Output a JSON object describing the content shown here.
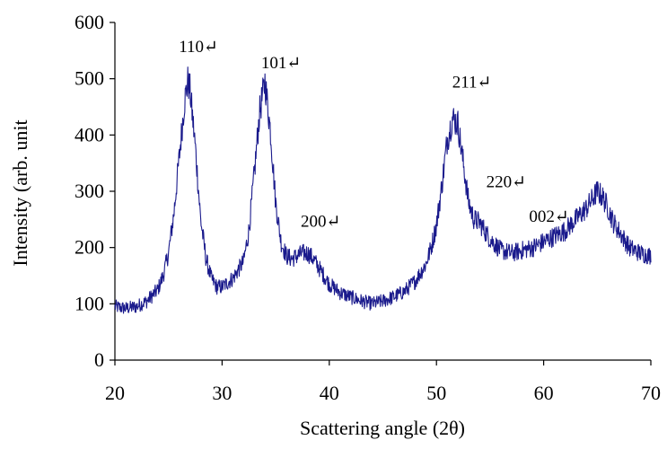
{
  "chart_data": {
    "type": "line",
    "title": "",
    "xlabel": "Scattering angle (2θ)",
    "ylabel": "Intensity (arb. unit",
    "xlim": [
      20,
      70
    ],
    "ylim": [
      0,
      600
    ],
    "xticks": [
      20,
      30,
      40,
      50,
      60,
      70
    ],
    "yticks": [
      0,
      100,
      200,
      300,
      400,
      500,
      600
    ],
    "grid": false,
    "legend": "none",
    "series_color": "#1a1a8c",
    "series": [
      {
        "x": [
          20,
          21,
          22,
          23,
          24,
          24.5,
          25,
          25.5,
          26,
          26.5,
          26.8,
          27,
          27.5,
          28,
          28.5,
          29,
          29.5,
          30,
          31,
          32,
          32.5,
          33,
          33.5,
          34,
          34.5,
          35,
          35.5,
          36,
          36.5,
          37,
          37.5,
          38,
          38.5,
          39,
          39.5,
          40,
          41,
          42,
          43,
          44,
          45,
          46,
          47,
          48,
          49,
          49.5,
          50,
          50.5,
          51,
          51.5,
          52,
          52.5,
          53,
          53.5,
          54,
          54.5,
          55,
          56,
          57,
          58,
          59,
          60,
          61,
          62,
          63,
          64,
          64.5,
          65,
          65.5,
          66,
          66.5,
          67,
          67.5,
          68,
          69,
          70
        ],
        "y": [
          95,
          92,
          95,
          105,
          125,
          150,
          190,
          260,
          360,
          460,
          495,
          480,
          380,
          250,
          180,
          145,
          130,
          130,
          145,
          175,
          230,
          330,
          440,
          495,
          410,
          280,
          210,
          185,
          180,
          185,
          190,
          190,
          180,
          165,
          150,
          135,
          120,
          112,
          105,
          100,
          105,
          112,
          122,
          140,
          170,
          200,
          240,
          310,
          390,
          430,
          420,
          350,
          280,
          250,
          245,
          230,
          215,
          195,
          190,
          195,
          200,
          210,
          220,
          230,
          250,
          270,
          285,
          300,
          290,
          270,
          245,
          230,
          215,
          200,
          190,
          185
        ]
      }
    ],
    "annotations": [
      {
        "text": "110↵",
        "x": 27.8,
        "y": 547
      },
      {
        "text": "101↵",
        "x": 35.5,
        "y": 519
      },
      {
        "text": "200↵",
        "x": 39.2,
        "y": 237
      },
      {
        "text": "211↵",
        "x": 53.3,
        "y": 484
      },
      {
        "text": "220↵",
        "x": 56.5,
        "y": 307
      },
      {
        "text": "002↵",
        "x": 60.5,
        "y": 246
      }
    ]
  }
}
